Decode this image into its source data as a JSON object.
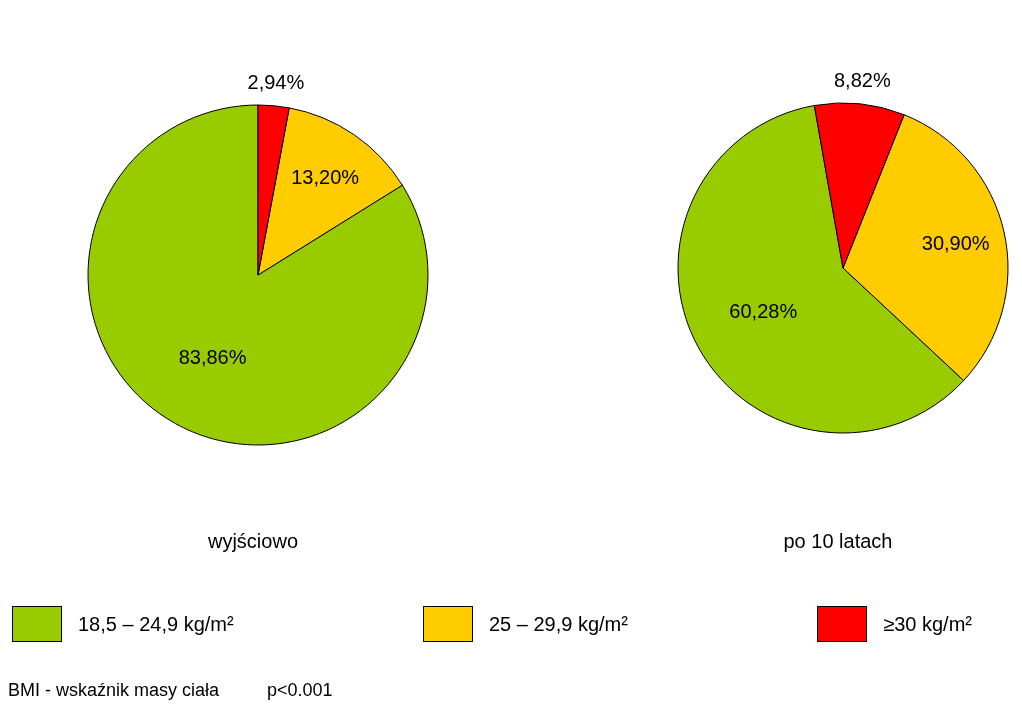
{
  "chart_data": [
    {
      "type": "pie",
      "title": "wyjściowo",
      "categories": [
        "18,5 – 24,9 kg/m²",
        "25 – 29,9 kg/m²",
        "≥30 kg/m²"
      ],
      "values": [
        83.86,
        13.2,
        2.94
      ],
      "value_labels": [
        "83,86%",
        "13,20%",
        "2,94%"
      ],
      "colors": [
        "#99cc00",
        "#ffcc00",
        "#ff0000"
      ],
      "legend": "bottom",
      "annotations": [
        "BMI - wskaźnik masy ciała",
        "p<0.001"
      ]
    },
    {
      "type": "pie",
      "title": "po 10 latach",
      "categories": [
        null,
        null,
        null
      ],
      "values": [
        60.28,
        30.9,
        8.82
      ],
      "value_labels": [
        "60,28%",
        "30,90%",
        "8,82%"
      ],
      "colors": [
        "#99cc00",
        "#ffcc00",
        "#ff0000"
      ]
    }
  ]
}
